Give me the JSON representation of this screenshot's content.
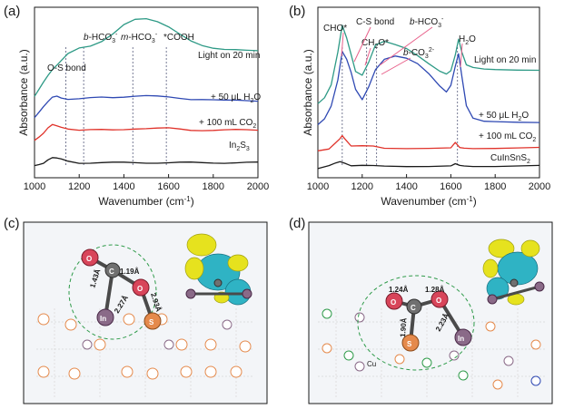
{
  "colors": {
    "black": "#1a1a1a",
    "red": "#e0322a",
    "blue": "#2f49b3",
    "teal": "#2e9a86",
    "guide": "#555a7a",
    "orange_atom": "#e58a4c",
    "purple_atom": "#8a6a88",
    "red_atom": "#d8455a",
    "gray_atom": "#707070",
    "halo": "#2f9b4a",
    "yellow_lobe": "#e6e21e",
    "cyan_lobe": "#2fb3c4",
    "panel_bg": "#f3f5f8"
  },
  "chart_data": [
    {
      "panel": "(a)",
      "type": "line",
      "xlabel": "Wavenumber (cm-1)",
      "ylabel": "Absorbance (a.u.)",
      "xlim": [
        1000,
        2000
      ],
      "xticks": [
        1000,
        1200,
        1400,
        1600,
        1800,
        2000
      ],
      "series": [
        {
          "name": "In2S3",
          "color_key": "black",
          "baseline": 0.05,
          "x": [
            1000,
            1020,
            1040,
            1060,
            1080,
            1100,
            1120,
            1150,
            1200,
            1250,
            1300,
            1350,
            1400,
            1450,
            1500,
            1550,
            1600,
            1650,
            1700,
            1750,
            1800,
            1850,
            1900,
            1950,
            2000
          ],
          "y": [
            0.0,
            0.01,
            0.02,
            0.04,
            0.05,
            0.045,
            0.04,
            0.03,
            0.02,
            0.02,
            0.02,
            0.02,
            0.02,
            0.02,
            0.02,
            0.02,
            0.02,
            0.02,
            0.02,
            0.02,
            0.02,
            0.02,
            0.02,
            0.02,
            0.02
          ]
        },
        {
          "name": "+ 100 mL CO2",
          "color_key": "red",
          "baseline": 0.21,
          "x": [
            1000,
            1020,
            1040,
            1060,
            1080,
            1100,
            1120,
            1150,
            1200,
            1250,
            1300,
            1350,
            1400,
            1450,
            1500,
            1550,
            1600,
            1650,
            1700,
            1750,
            1800,
            1850,
            1900,
            1950,
            2000
          ],
          "y": [
            0.0,
            0.02,
            0.04,
            0.07,
            0.09,
            0.085,
            0.08,
            0.07,
            0.06,
            0.06,
            0.06,
            0.06,
            0.065,
            0.07,
            0.07,
            0.07,
            0.07,
            0.065,
            0.06,
            0.06,
            0.06,
            0.06,
            0.06,
            0.06,
            0.06
          ]
        },
        {
          "name": "+ 50 uL H2O",
          "color_key": "blue",
          "baseline": 0.35,
          "x": [
            1000,
            1020,
            1040,
            1060,
            1080,
            1100,
            1120,
            1150,
            1200,
            1250,
            1300,
            1350,
            1400,
            1450,
            1500,
            1550,
            1600,
            1650,
            1700,
            1750,
            1800,
            1850,
            1900,
            1950,
            2000
          ],
          "y": [
            0.0,
            0.03,
            0.06,
            0.09,
            0.12,
            0.13,
            0.12,
            0.11,
            0.11,
            0.115,
            0.12,
            0.12,
            0.125,
            0.13,
            0.13,
            0.125,
            0.12,
            0.115,
            0.11,
            0.11,
            0.105,
            0.1,
            0.1,
            0.1,
            0.1
          ]
        },
        {
          "name": "Light on 20 min",
          "color_key": "teal",
          "baseline": 0.48,
          "x": [
            1000,
            1020,
            1040,
            1060,
            1080,
            1100,
            1120,
            1150,
            1200,
            1250,
            1300,
            1350,
            1400,
            1450,
            1500,
            1550,
            1600,
            1650,
            1700,
            1750,
            1800,
            1850,
            1900,
            1950,
            2000
          ],
          "y": [
            0.0,
            0.04,
            0.08,
            0.12,
            0.16,
            0.19,
            0.22,
            0.26,
            0.29,
            0.3,
            0.33,
            0.38,
            0.44,
            0.47,
            0.47,
            0.45,
            0.42,
            0.38,
            0.34,
            0.31,
            0.29,
            0.28,
            0.28,
            0.28,
            0.28
          ]
        }
      ],
      "guides": [
        {
          "x": 1140,
          "label": "O-S bond"
        },
        {
          "x": 1220,
          "label": "b-HCO3-"
        },
        {
          "x": 1440,
          "label": "m-HCO3-"
        },
        {
          "x": 1590,
          "label": "*COOH"
        }
      ],
      "series_labels": [
        "Light on 20 min",
        "+ 50 μL H2O",
        "+ 100 mL CO2",
        "In2S3"
      ]
    },
    {
      "panel": "(b)",
      "type": "line",
      "xlabel": "Wavenumber (cm-1)",
      "ylabel": "Absorbance (a.u.)",
      "xlim": [
        1000,
        2000
      ],
      "xticks": [
        1000,
        1200,
        1400,
        1600,
        1800,
        2000
      ],
      "series": [
        {
          "name": "CuInSnS2",
          "color_key": "black",
          "baseline": 0.03,
          "x": [
            1000,
            1050,
            1080,
            1100,
            1120,
            1150,
            1200,
            1250,
            1300,
            1400,
            1500,
            1600,
            1620,
            1640,
            1660,
            1700,
            1800,
            1900,
            2000
          ],
          "y": [
            0.0,
            0.02,
            0.04,
            0.05,
            0.04,
            0.02,
            0.02,
            0.02,
            0.02,
            0.02,
            0.02,
            0.02,
            0.03,
            0.02,
            0.02,
            0.02,
            0.02,
            0.02,
            0.02
          ]
        },
        {
          "name": "+ 100 mL CO2",
          "color_key": "red",
          "baseline": 0.14,
          "x": [
            1000,
            1050,
            1080,
            1100,
            1110,
            1120,
            1150,
            1200,
            1250,
            1300,
            1400,
            1500,
            1600,
            1620,
            1640,
            1660,
            1700,
            1800,
            1900,
            2000
          ],
          "y": [
            0.0,
            0.01,
            0.05,
            0.08,
            0.1,
            0.08,
            0.03,
            0.03,
            0.03,
            0.02,
            0.02,
            0.02,
            0.02,
            0.05,
            0.02,
            0.02,
            0.02,
            0.02,
            0.02,
            0.02
          ]
        },
        {
          "name": "+ 50 uL H2O",
          "color_key": "blue",
          "baseline": 0.3,
          "x": [
            1000,
            1030,
            1060,
            1090,
            1110,
            1130,
            1150,
            1170,
            1200,
            1230,
            1260,
            1300,
            1350,
            1400,
            1450,
            1500,
            1550,
            1580,
            1600,
            1620,
            1635,
            1650,
            1670,
            1700,
            1750,
            1800,
            1900,
            2000
          ],
          "y": [
            0.0,
            0.04,
            0.12,
            0.28,
            0.45,
            0.4,
            0.32,
            0.22,
            0.16,
            0.24,
            0.34,
            0.4,
            0.42,
            0.41,
            0.38,
            0.32,
            0.24,
            0.2,
            0.24,
            0.36,
            0.44,
            0.3,
            0.12,
            0.04,
            0.02,
            0.02,
            0.02,
            0.02
          ]
        },
        {
          "name": "Light on 20 min",
          "color_key": "teal",
          "baseline": 0.43,
          "x": [
            1000,
            1030,
            1060,
            1090,
            1110,
            1130,
            1150,
            1170,
            1200,
            1230,
            1260,
            1300,
            1350,
            1400,
            1450,
            1500,
            1550,
            1580,
            1600,
            1620,
            1635,
            1650,
            1670,
            1700,
            1750,
            1800,
            1900,
            2000
          ],
          "y": [
            0.0,
            0.04,
            0.12,
            0.32,
            0.48,
            0.4,
            0.3,
            0.2,
            0.18,
            0.26,
            0.36,
            0.38,
            0.36,
            0.34,
            0.3,
            0.25,
            0.2,
            0.18,
            0.2,
            0.3,
            0.4,
            0.32,
            0.24,
            0.22,
            0.21,
            0.21,
            0.21,
            0.21
          ]
        }
      ],
      "guides": [
        {
          "x": 1110,
          "label": "CHO*"
        },
        {
          "x": 1220,
          "label": "C-S bond"
        },
        {
          "x": 1265,
          "label": "CH2O*"
        },
        {
          "x": 1630,
          "label": "H2O"
        }
      ],
      "top_labels": [
        "CHO*",
        "C-S bond",
        "CH2O*",
        "b-HCO3-",
        "b-CO32-",
        "H2O"
      ],
      "series_labels": [
        "Light on 20 min",
        "+ 50 μL H2O",
        "+ 100 mL CO2",
        "CuInSnS2"
      ]
    }
  ],
  "panel_c": {
    "label": "(c)",
    "atoms": [
      "O",
      "C",
      "O",
      "S",
      "In"
    ],
    "bonds": [
      "1.19Å",
      "1.43Å",
      "2.27Å",
      "2.93Å"
    ]
  },
  "panel_d": {
    "label": "(d)",
    "atoms": [
      "O",
      "C",
      "O",
      "S",
      "In",
      "Cu"
    ],
    "bonds": [
      "1.24Å",
      "1.28Å",
      "1.90Å",
      "2.23Å"
    ]
  }
}
